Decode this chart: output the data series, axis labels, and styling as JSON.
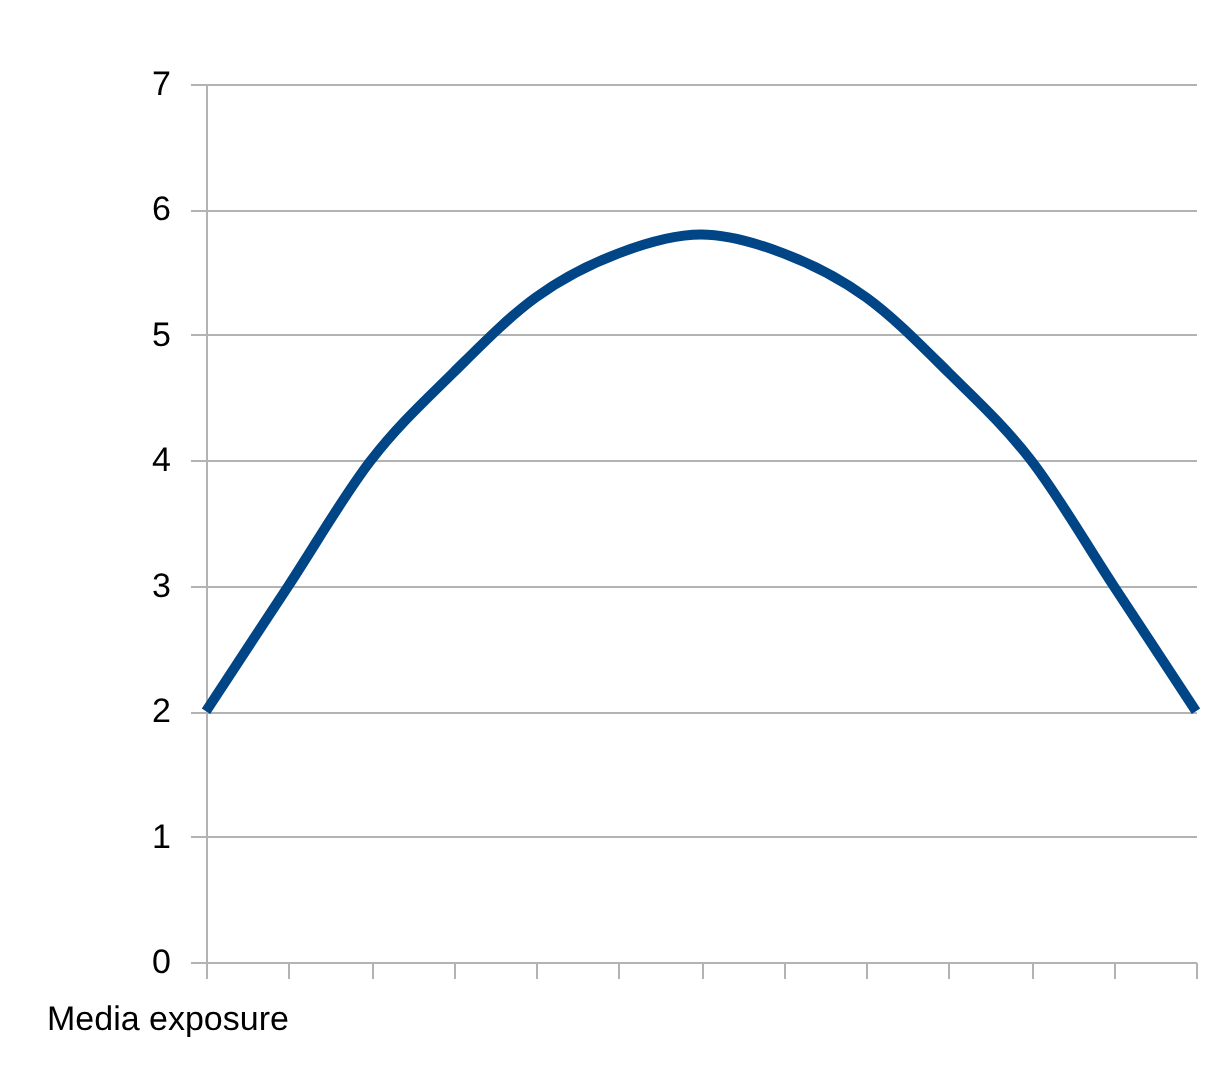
{
  "chart_data": {
    "type": "line",
    "xlabel": "Media exposure",
    "categories": [
      null,
      null,
      null,
      null,
      null,
      null,
      null,
      null,
      null,
      null,
      null,
      null,
      null
    ],
    "series": [
      {
        "color": "#004586",
        "values": [
          2.0,
          3.0,
          4.0,
          4.7,
          5.3,
          5.65,
          5.8,
          5.65,
          5.3,
          4.7,
          4.0,
          3.0,
          2.0
        ]
      }
    ],
    "ylim": [
      0,
      7
    ],
    "yticks": [
      0,
      1,
      2,
      3,
      4,
      5,
      6,
      7
    ],
    "grid": "y",
    "legend": false,
    "tick_labels": "y",
    "marker": "none",
    "line_style": "solid"
  }
}
